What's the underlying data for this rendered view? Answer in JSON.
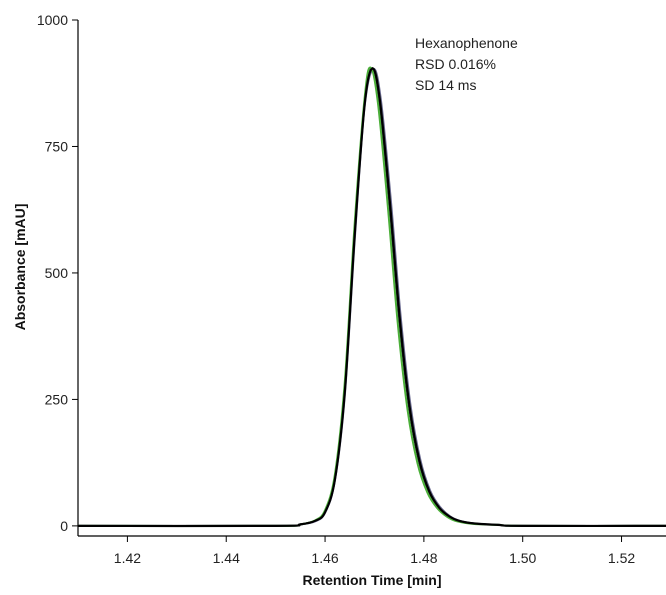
{
  "chart_data": {
    "type": "line",
    "xlabel": "Retention Time [min]",
    "ylabel": "Absorbance [mAU]",
    "xlim": [
      1.41,
      1.529
    ],
    "ylim": [
      -20,
      1000
    ],
    "x_ticks": [
      1.42,
      1.44,
      1.46,
      1.48,
      1.5,
      1.52
    ],
    "x_tick_labels": [
      "1.42",
      "1.44",
      "1.46",
      "1.48",
      "1.50",
      "1.52"
    ],
    "y_ticks": [
      0,
      250,
      500,
      750,
      1000
    ],
    "y_tick_labels": [
      "0",
      "250",
      "500",
      "750",
      "1000"
    ],
    "grid": false,
    "annotations": [
      "Hexanophenone",
      "RSD 0.016%",
      "SD 14 ms"
    ],
    "peak": {
      "x": 1.4695,
      "y": 905
    },
    "series": [
      {
        "color": "#2a2a3a",
        "x": [
          1.41,
          1.45,
          1.455,
          1.458,
          1.46,
          1.462,
          1.464,
          1.466,
          1.468,
          1.4695,
          1.471,
          1.473,
          1.475,
          1.477,
          1.479,
          1.481,
          1.483,
          1.485,
          1.487,
          1.49,
          1.495,
          1.5,
          1.529
        ],
        "values": [
          0,
          0,
          3,
          10,
          28,
          95,
          270,
          580,
          835,
          905,
          840,
          640,
          410,
          235,
          128,
          68,
          36,
          19,
          10,
          5,
          2,
          0,
          0
        ]
      },
      {
        "color": "#6a6a90",
        "x": [
          1.41,
          1.45,
          1.455,
          1.458,
          1.46,
          1.462,
          1.464,
          1.466,
          1.468,
          1.4698,
          1.4713,
          1.4733,
          1.4753,
          1.4773,
          1.4793,
          1.4813,
          1.4833,
          1.4853,
          1.4873,
          1.49,
          1.495,
          1.5,
          1.529
        ],
        "values": [
          0,
          0,
          3,
          9,
          26,
          90,
          258,
          565,
          828,
          903,
          842,
          645,
          414,
          238,
          130,
          69,
          37,
          19,
          10,
          5,
          2,
          0,
          0
        ]
      },
      {
        "color": "#4caf3a",
        "x": [
          1.41,
          1.45,
          1.455,
          1.458,
          1.46,
          1.462,
          1.464,
          1.466,
          1.468,
          1.4692,
          1.4707,
          1.4727,
          1.4747,
          1.4767,
          1.4787,
          1.4807,
          1.4827,
          1.4847,
          1.4867,
          1.49,
          1.495,
          1.5,
          1.529
        ],
        "values": [
          0,
          0,
          3,
          11,
          31,
          102,
          285,
          598,
          845,
          906,
          836,
          632,
          402,
          229,
          124,
          66,
          35,
          18,
          9,
          4,
          2,
          0,
          0
        ]
      },
      {
        "color": "#000000",
        "x": [
          1.41,
          1.45,
          1.455,
          1.458,
          1.46,
          1.462,
          1.464,
          1.466,
          1.468,
          1.4696,
          1.4711,
          1.4731,
          1.4751,
          1.4771,
          1.4791,
          1.4811,
          1.4831,
          1.4851,
          1.4871,
          1.49,
          1.495,
          1.5,
          1.529
        ],
        "values": [
          0,
          0,
          3,
          10,
          27,
          92,
          265,
          575,
          832,
          904,
          841,
          642,
          412,
          236,
          129,
          68,
          36,
          19,
          10,
          5,
          2,
          0,
          0
        ]
      }
    ]
  }
}
